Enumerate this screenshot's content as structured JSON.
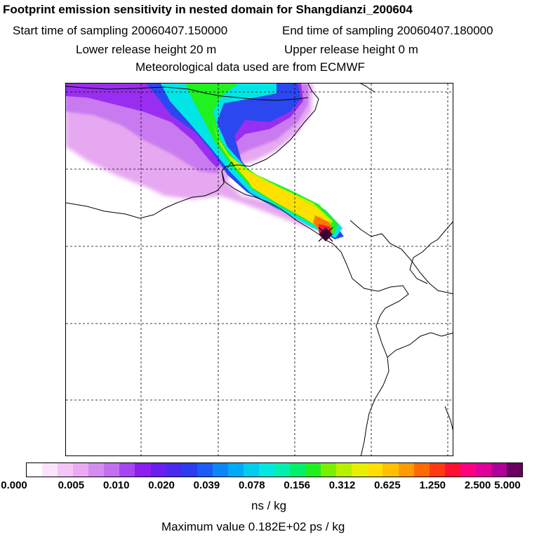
{
  "header": {
    "title": "Footprint emission sensitivity in nested domain for Shangdianzi_200604",
    "start_time": "Start time of sampling 20060407.150000",
    "end_time": "End time of sampling 20060407.180000",
    "lower_height": "Lower release height   20 m",
    "upper_height": "Upper release height    0 m",
    "met_data": "Meteorological data used are from ECMWF"
  },
  "map": {
    "plume_colors": {
      "outer": "#e6a8f0",
      "light_purple": "#c97af0",
      "purple": "#9a2ef0",
      "blue": "#2b48f0",
      "cyan": "#00e6e6",
      "green": "#21f021",
      "yellow_green": "#c8f000",
      "yellow": "#ffe100",
      "orange": "#ff7a00",
      "red": "#ff1a2a",
      "magenta": "#e0008a",
      "dark": "#3a0030"
    },
    "coast_color": "#000000",
    "grid_color": "#000000"
  },
  "colorbar": {
    "colors": [
      "#ffffff",
      "#fbe4fb",
      "#f3c6f5",
      "#eaaaf3",
      "#d58cf2",
      "#c270f1",
      "#a844f1",
      "#8c1ef0",
      "#6a1ef0",
      "#4a2af0",
      "#2c3cf0",
      "#1a5cf5",
      "#0a86f8",
      "#00aaf8",
      "#00cdf0",
      "#00e8e0",
      "#00f0b0",
      "#00f06a",
      "#20f020",
      "#7af000",
      "#b8f000",
      "#e6f000",
      "#ffe000",
      "#ffc000",
      "#ff9a00",
      "#ff6a00",
      "#ff3a10",
      "#ff1030",
      "#ff0080",
      "#e0009a",
      "#b0009a",
      "#6a0060"
    ],
    "tick_labels": [
      "0.000",
      "0.005",
      "0.010",
      "0.020",
      "0.039",
      "0.078",
      "0.156",
      "0.312",
      "0.625",
      "1.250",
      "2.500",
      "5.000"
    ],
    "units": "ns / kg"
  },
  "footer": {
    "max_value": "Maximum value  0.182E+02 ps / kg"
  }
}
